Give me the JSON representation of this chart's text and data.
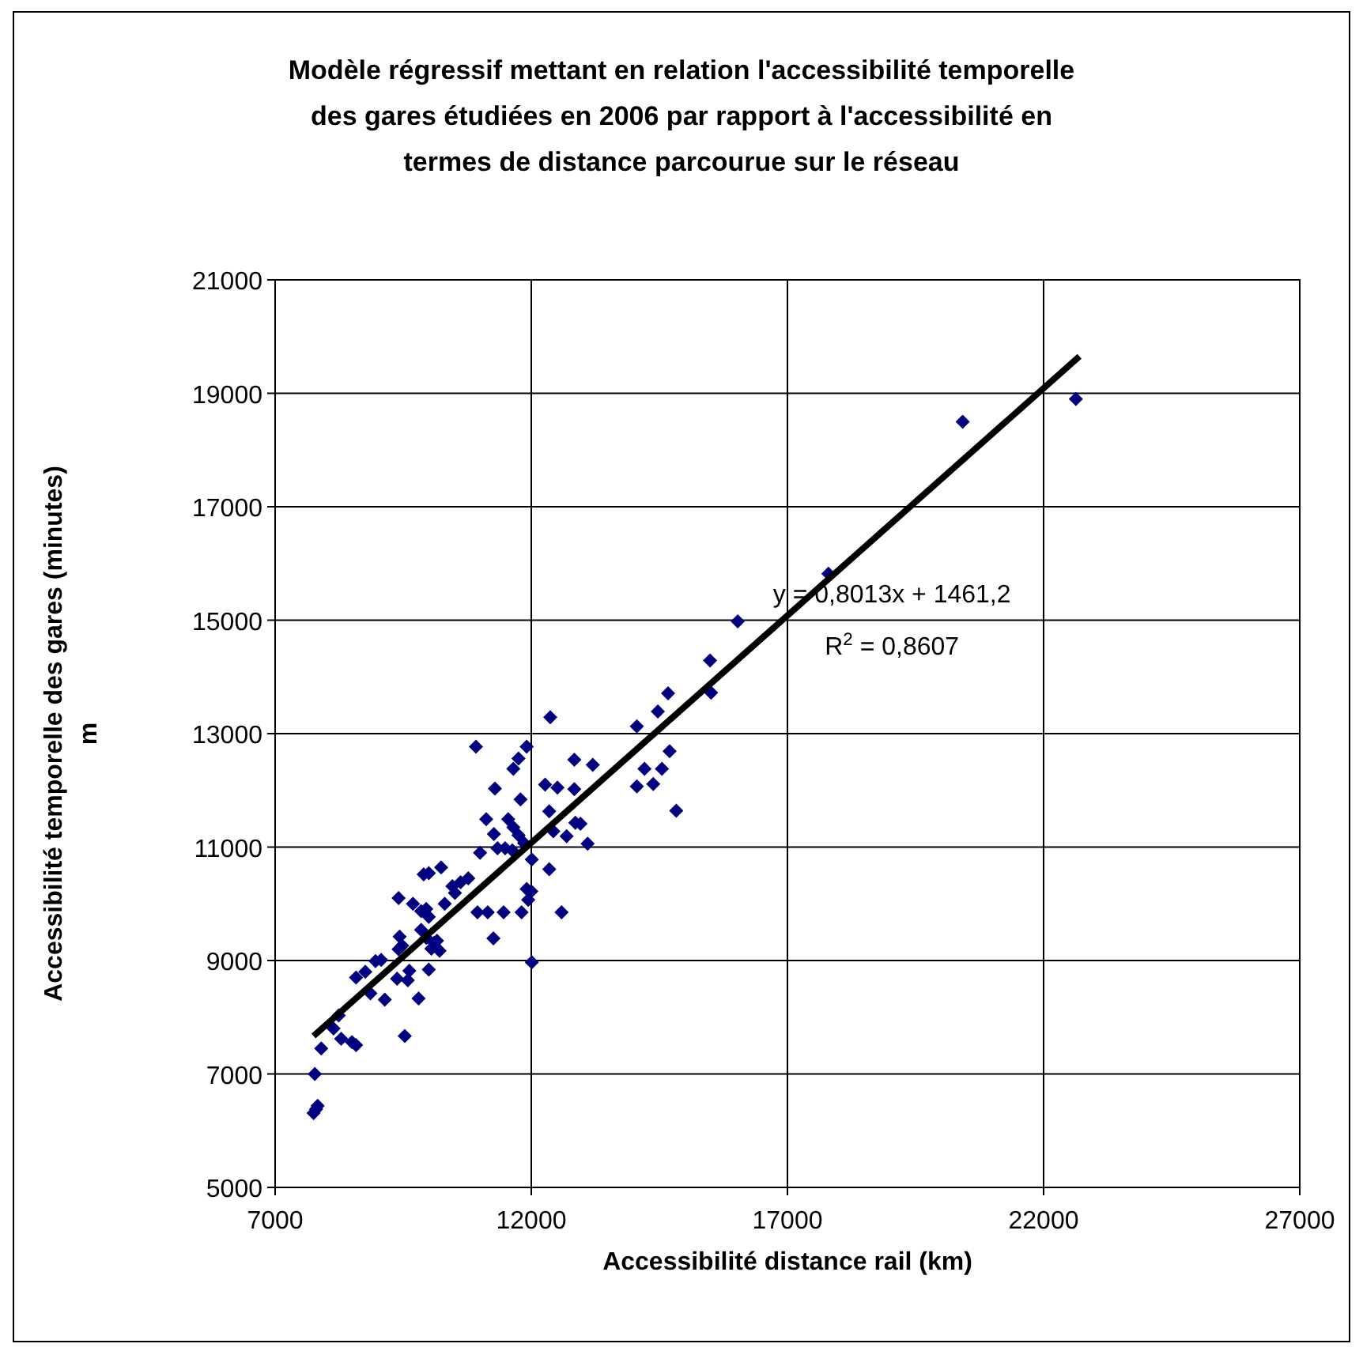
{
  "chart_data": {
    "type": "scatter",
    "title": "Modèle régressif mettant en relation l'accessibilité temporelle des gares étudiées en 2006 par rapport à l'accessibilité en termes de distance parcourue sur le réseau",
    "xlabel": "Accessibilité distance rail (km)",
    "ylabel": "Accessibilité temporelle des gares (minutes)\nm",
    "xlim": [
      7000,
      27000
    ],
    "xticks": [
      7000,
      12000,
      17000,
      22000,
      27000
    ],
    "ylim": [
      5000,
      21000
    ],
    "yticks": [
      5000,
      7000,
      9000,
      11000,
      13000,
      15000,
      17000,
      19000,
      21000
    ],
    "grid": true,
    "marker": "diamond",
    "series": [
      {
        "color": "#000080",
        "x": [
          7775,
          7800,
          7750,
          7830,
          7900,
          8140,
          8240,
          8290,
          8500,
          8580,
          9530,
          8580,
          8760,
          8860,
          8960,
          9070,
          9140,
          9380,
          9430,
          9480,
          9410,
          9620,
          9590,
          9800,
          9410,
          9690,
          9850,
          9950,
          10000,
          9850,
          9950,
          10100,
          10210,
          10050,
          10160,
          10000,
          9900,
          10000,
          10240,
          10310,
          10460,
          10510,
          10620,
          10770,
          10920,
          11000,
          10950,
          11150,
          11460,
          11260,
          11120,
          11270,
          11290,
          11550,
          11650,
          11750,
          11860,
          11340,
          11490,
          11630,
          11650,
          11750,
          11910,
          11790,
          11810,
          11910,
          12000,
          11940,
          12010,
          12010,
          12370,
          12270,
          12510,
          12840,
          12350,
          12430,
          12350,
          12840,
          13200,
          12690,
          12860,
          12960,
          13100,
          12590,
          14060,
          14470,
          14670,
          15490,
          15510,
          16030,
          17800,
          14700,
          14210,
          14550,
          14060,
          14380,
          14830,
          20420,
          22630
        ],
        "values": [
          7000,
          6380,
          6310,
          6440,
          7450,
          7800,
          8030,
          7620,
          7560,
          7510,
          7670,
          8700,
          8800,
          8420,
          8990,
          9010,
          8310,
          8680,
          9420,
          9260,
          9200,
          8820,
          8650,
          8330,
          10100,
          10000,
          9870,
          9910,
          9770,
          9540,
          9400,
          9310,
          9170,
          9210,
          9350,
          8840,
          10520,
          10540,
          10640,
          10000,
          10310,
          10190,
          10380,
          10450,
          12770,
          10900,
          9850,
          9850,
          9850,
          9390,
          11490,
          11230,
          12030,
          11490,
          11350,
          11210,
          11070,
          10980,
          10980,
          10940,
          12380,
          12560,
          12770,
          11840,
          9850,
          10260,
          10220,
          10070,
          10780,
          8970,
          13290,
          12100,
          12050,
          12020,
          11630,
          11280,
          10610,
          12540,
          12450,
          11190,
          11430,
          11410,
          11060,
          9850,
          13130,
          13390,
          13710,
          14290,
          13720,
          14980,
          15820,
          12690,
          12380,
          12380,
          12070,
          12110,
          11640,
          18500,
          18900
        ]
      },
      {
        "type": "line",
        "color": "#000000",
        "marker": "none",
        "line_style": "solid",
        "x": [
          7750,
          22700
        ],
        "values": [
          7670,
          19650
        ]
      }
    ],
    "annotations": [
      "y = 0,8013x + 1461,2",
      "R$^{2}$ = 0,8607"
    ]
  }
}
